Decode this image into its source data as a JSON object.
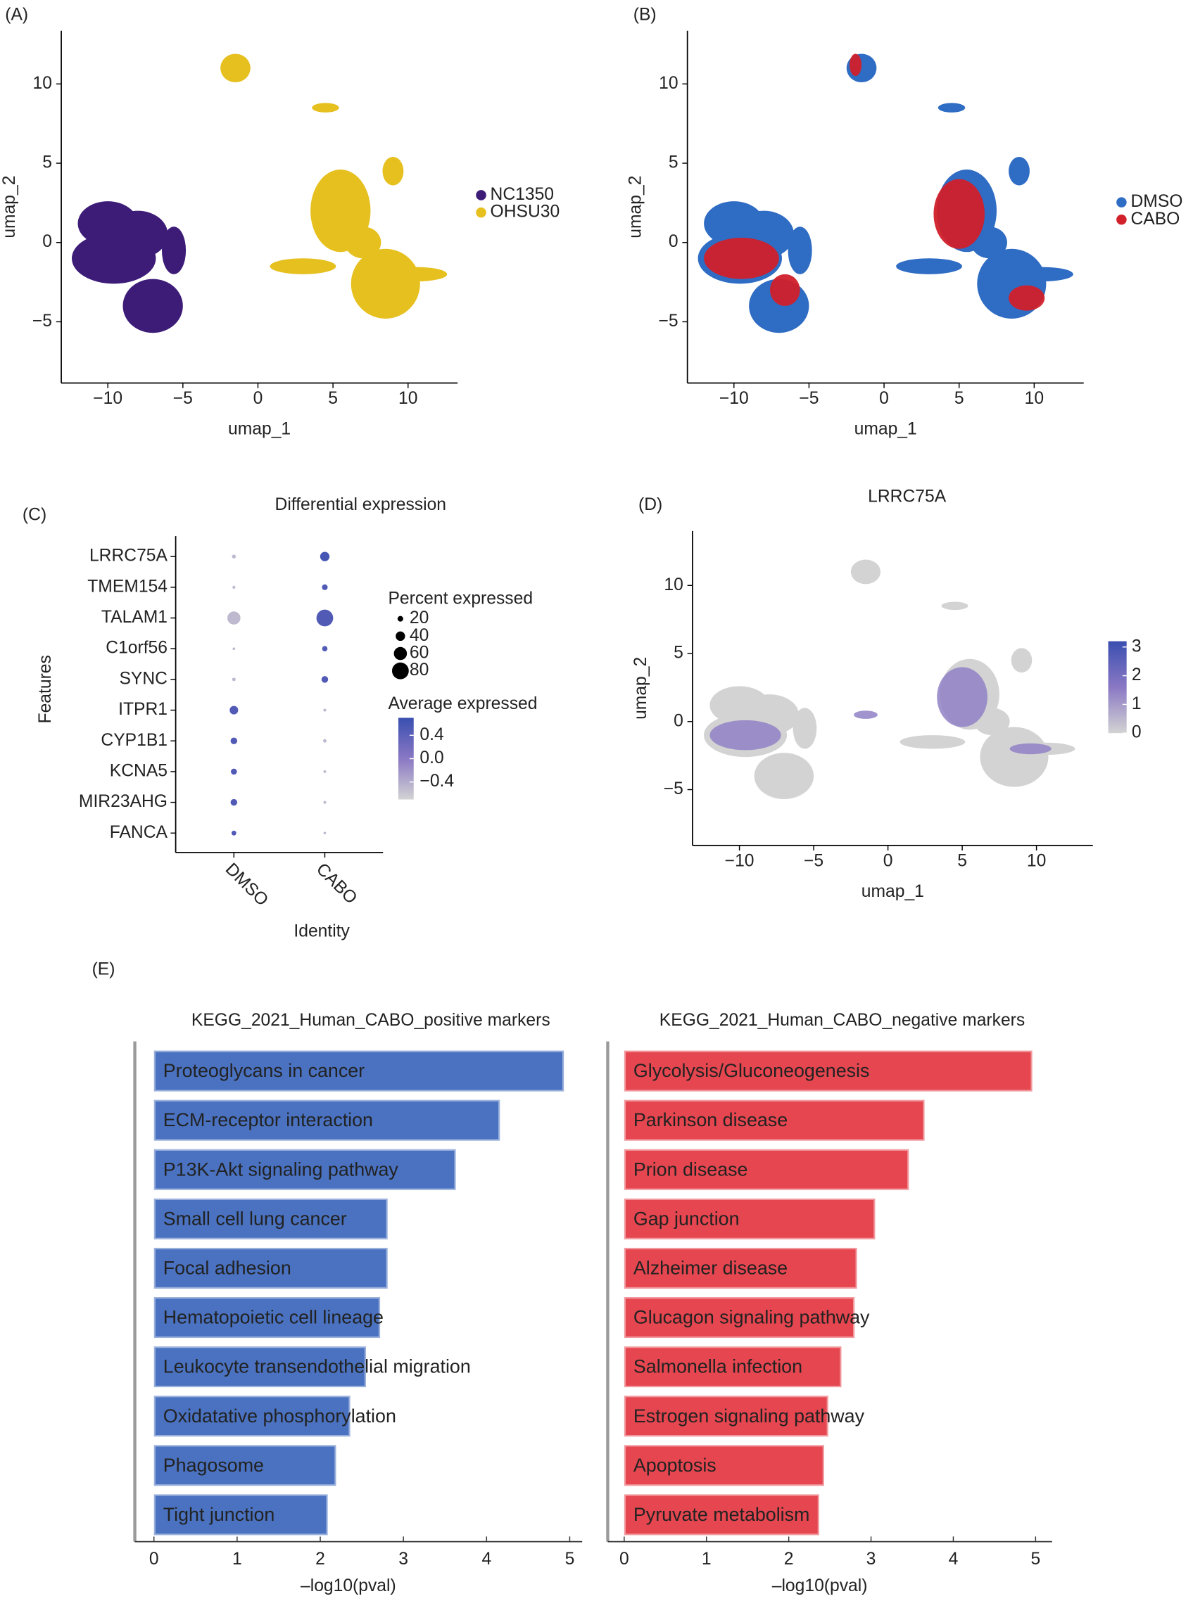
{
  "chart_data": [
    {
      "type": "umap",
      "panel_label": "(A)",
      "x_label": "umap_1",
      "y_label": "umap_2",
      "xlim": [
        -13.1,
        13.3
      ],
      "ylim": [
        -8.86,
        13.35
      ],
      "xticks": [
        {
          "value": -10,
          "label": "−10"
        },
        {
          "value": -5,
          "label": "−5"
        },
        0,
        5,
        10
      ],
      "yticks": [
        {
          "value": -5,
          "label": "−5"
        },
        0,
        5,
        10
      ],
      "series": [
        {
          "name": "NC1350",
          "color": "#3d1c78"
        },
        {
          "name": "OHSU30",
          "color": "#e6c01e"
        }
      ]
    },
    {
      "type": "umap",
      "panel_label": "(B)",
      "x_label": "umap_1",
      "y_label": "umap_2",
      "xlim": [
        -13.1,
        13.3
      ],
      "ylim": [
        -8.86,
        13.35
      ],
      "xticks": [
        {
          "value": -10,
          "label": "−10"
        },
        {
          "value": -5,
          "label": "−5"
        },
        0,
        5,
        10
      ],
      "yticks": [
        {
          "value": -5,
          "label": "−5"
        },
        0,
        5,
        10
      ],
      "series": [
        {
          "name": "DMSO",
          "color": "#2f6cc4"
        },
        {
          "name": "CABO",
          "color": "#d1202a"
        }
      ]
    },
    {
      "type": "dot",
      "panel_label": "(C)",
      "title": "Differential expression",
      "categories": [
        "LRRC75A",
        "TMEM154",
        "TALAM1",
        "C1orf56",
        "SYNC",
        "ITPR1",
        "CYP1B1",
        "KCNA5",
        "MIR23AHG",
        "FANCA"
      ],
      "groups": [
        "DMSO",
        "CABO"
      ],
      "x_label": "Identity",
      "y_label": "Features",
      "percent_expressed": [
        [
          10,
          5,
          60,
          3,
          8,
          35,
          25,
          22,
          25,
          15
        ],
        [
          40,
          20,
          80,
          18,
          25,
          5,
          8,
          4,
          4,
          3
        ]
      ],
      "average_expressed": [
        [
          -0.5,
          -0.5,
          -0.5,
          -0.5,
          -0.5,
          0.5,
          0.5,
          0.5,
          0.5,
          0.5
        ],
        [
          0.6,
          0.5,
          0.5,
          0.5,
          0.5,
          -0.5,
          -0.5,
          -0.5,
          -0.5,
          -0.5
        ]
      ],
      "size_legend_title": "Percent expressed",
      "size_ticks": [
        20,
        40,
        60,
        80
      ],
      "color_legend_title": "Average expressed",
      "clim": [
        -0.7,
        0.7
      ],
      "color_ticks": [
        0.4,
        {
          "value": 0,
          "label": "0.0"
        },
        {
          "value": -0.4,
          "label": "−0.4"
        }
      ],
      "colors": [
        "#d3d3d3",
        "#8a78c4",
        "#3a4fb0"
      ]
    },
    {
      "type": "feature",
      "panel_label": "(D)",
      "title": "LRRC75A",
      "x_label": "umap_1",
      "y_label": "umap_2",
      "xlim": [
        -13.16,
        13.8
      ],
      "ylim": [
        -9.1,
        14
      ],
      "xticks": [
        {
          "value": -10,
          "label": "−10"
        },
        {
          "value": -5,
          "label": "−5"
        },
        0,
        5,
        10
      ],
      "yticks": [
        {
          "value": -5,
          "label": "−5"
        },
        0,
        5,
        10
      ],
      "clim": [
        0,
        3.2
      ],
      "color_ticks": [
        0,
        1,
        2,
        3
      ],
      "colors": [
        "#d3d3d3",
        "#8a78c4",
        "#3a4fb0"
      ]
    },
    {
      "type": "bar",
      "panel_label": "(E)",
      "title": "KEGG_2021_Human_CABO_positive markers",
      "categories": [
        "Proteoglycans in cancer",
        "ECM-receptor interaction",
        "P13K-Akt signaling pathway",
        "Small cell lung cancer",
        "Focal adhesion",
        "Hematopoietic cell lineage",
        "Leukocyte transendothelial migration",
        "Oxidatative phosphorylation",
        "Phagosome",
        "Tight junction"
      ],
      "values": [
        4.93,
        4.16,
        3.63,
        2.81,
        2.81,
        2.72,
        2.55,
        2.36,
        2.19,
        2.09
      ],
      "color": "#4a72c0",
      "x_label": "–log10(pval)",
      "xlim": [
        -0.23,
        5.15
      ],
      "xticks": [
        0,
        1,
        2,
        3,
        4,
        5
      ]
    },
    {
      "type": "bar",
      "title": "KEGG_2021_Human_CABO_negative markers",
      "categories": [
        "Glycolysis/Gluconeogenesis",
        "Parkinson disease",
        "Prion disease",
        "Gap junction",
        "Alzheimer disease",
        "Glucagon signaling pathway",
        "Salmonella infection",
        "Estrogen signaling pathway",
        "Apoptosis",
        "Pyruvate metabolism"
      ],
      "values": [
        4.96,
        3.65,
        3.46,
        3.05,
        2.83,
        2.8,
        2.64,
        2.48,
        2.43,
        2.37
      ],
      "color": "#e5464f",
      "x_label": "–log10(pval)",
      "xlim": [
        -0.2,
        5.2
      ],
      "xticks": [
        0,
        1,
        2,
        3,
        4,
        5
      ]
    }
  ]
}
